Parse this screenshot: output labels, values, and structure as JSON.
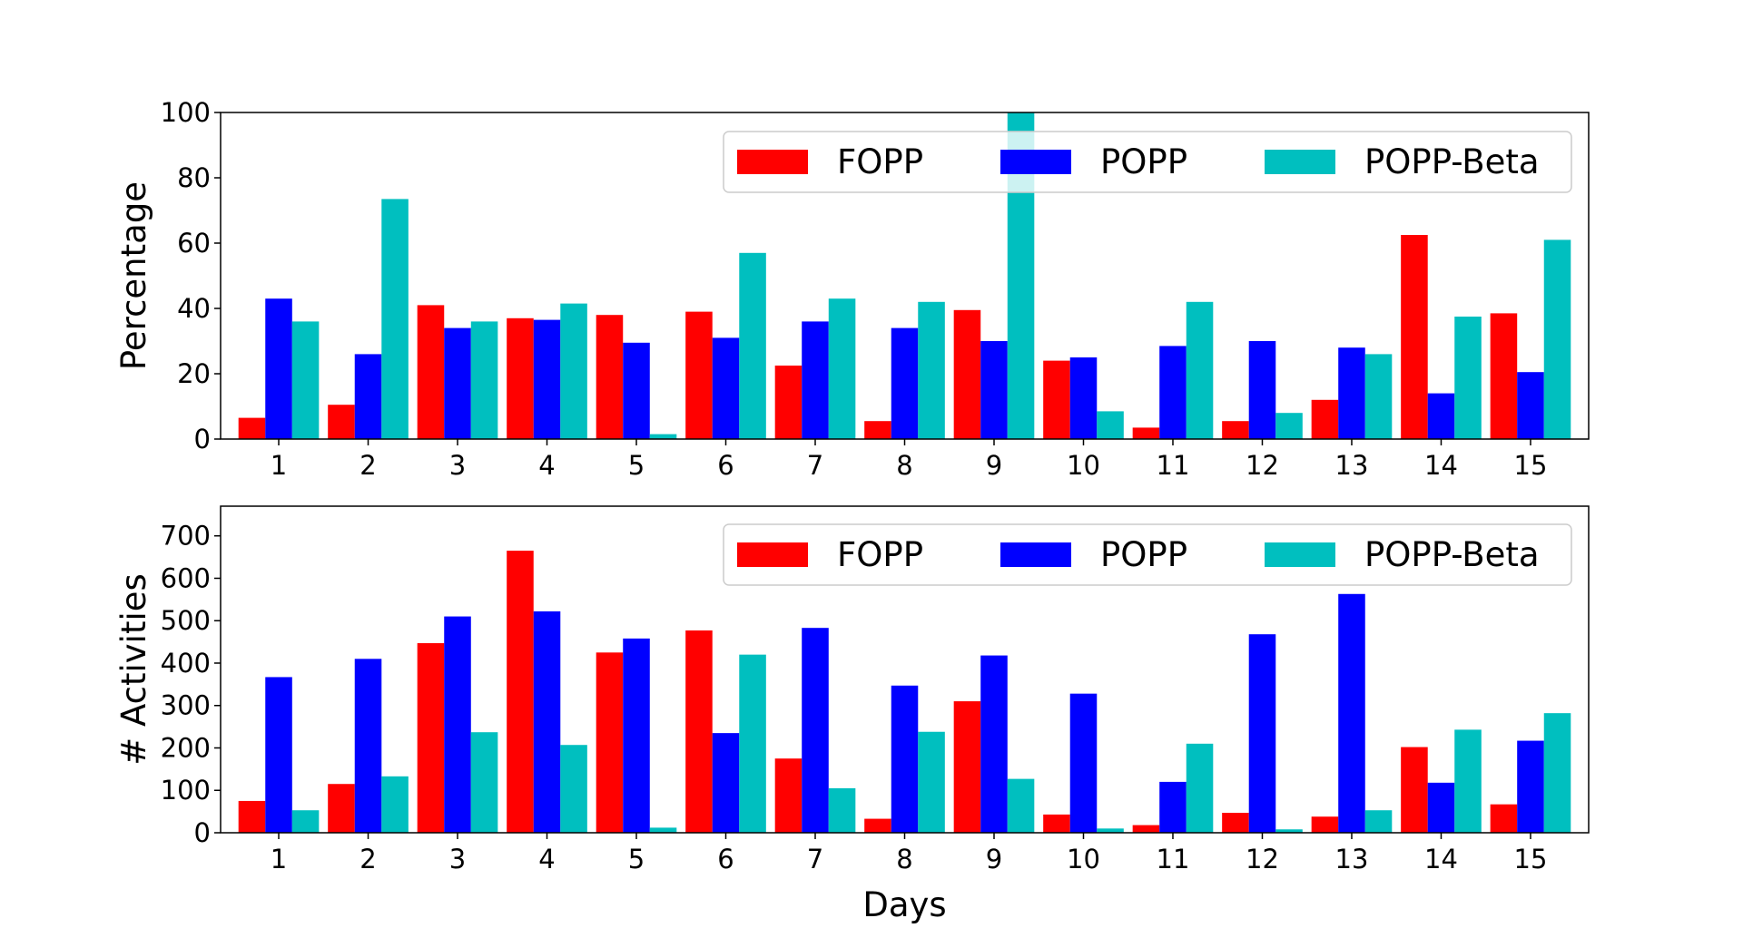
{
  "colors": {
    "FOPP": "#ff0000",
    "POPP": "#0000ff",
    "POPP-Beta": "#00bfbf"
  },
  "chart_data": [
    {
      "type": "bar",
      "categories": [
        "1",
        "2",
        "3",
        "4",
        "5",
        "6",
        "7",
        "8",
        "9",
        "10",
        "11",
        "12",
        "13",
        "14",
        "15"
      ],
      "series": [
        {
          "name": "FOPP",
          "values": [
            6.5,
            10.5,
            41,
            37,
            38,
            39,
            22.5,
            5.5,
            39.5,
            24,
            3.5,
            5.5,
            12,
            62.5,
            38.5
          ]
        },
        {
          "name": "POPP",
          "values": [
            43,
            26,
            34,
            36.5,
            29.5,
            31,
            36,
            34,
            30,
            25,
            28.5,
            30,
            28,
            14,
            20.5
          ]
        },
        {
          "name": "POPP-Beta",
          "values": [
            36,
            73.5,
            36,
            41.5,
            1.5,
            57,
            43,
            42,
            100,
            8.5,
            42,
            8,
            26,
            37.5,
            61
          ]
        }
      ],
      "xlabel": "",
      "ylabel": "Percentage",
      "ylim": [
        0,
        100
      ],
      "yticks": [
        "0",
        "20",
        "40",
        "60",
        "80",
        "100"
      ],
      "legend": "top-right",
      "grid": false
    },
    {
      "type": "bar",
      "categories": [
        "1",
        "2",
        "3",
        "4",
        "5",
        "6",
        "7",
        "8",
        "9",
        "10",
        "11",
        "12",
        "13",
        "14",
        "15"
      ],
      "series": [
        {
          "name": "FOPP",
          "values": [
            75,
            115,
            447,
            665,
            425,
            477,
            175,
            33,
            310,
            43,
            18,
            47,
            38,
            202,
            67
          ]
        },
        {
          "name": "POPP",
          "values": [
            367,
            410,
            510,
            522,
            458,
            235,
            483,
            347,
            418,
            328,
            120,
            468,
            563,
            118,
            217
          ]
        },
        {
          "name": "POPP-Beta",
          "values": [
            53,
            133,
            237,
            207,
            12,
            420,
            105,
            238,
            127,
            10,
            210,
            8,
            53,
            243,
            282
          ]
        }
      ],
      "xlabel": "Days",
      "ylabel": "# Activities",
      "ylim": [
        0,
        770
      ],
      "yticks": [
        "0",
        "100",
        "200",
        "300",
        "400",
        "500",
        "600",
        "700"
      ],
      "legend": "top-right",
      "grid": false
    }
  ]
}
